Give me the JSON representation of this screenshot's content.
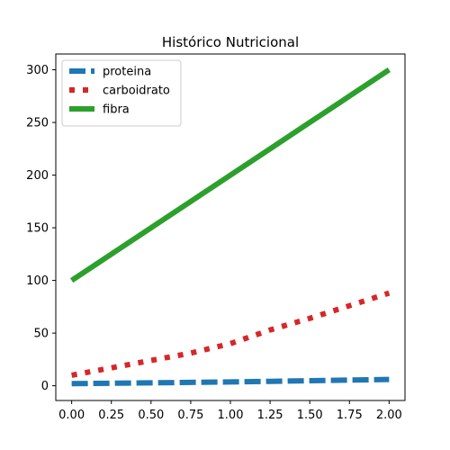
{
  "chart_data": {
    "type": "line",
    "title": "Histórico Nutricional",
    "xlabel": "",
    "ylabel": "",
    "xlim": [
      -0.1,
      2.1
    ],
    "ylim": [
      -14,
      315
    ],
    "x_ticks": [
      "0.00",
      "0.25",
      "0.50",
      "0.75",
      "1.00",
      "1.25",
      "1.50",
      "1.75",
      "2.00"
    ],
    "y_ticks": [
      "0",
      "50",
      "100",
      "150",
      "200",
      "250",
      "300"
    ],
    "grid": false,
    "legend_position": "top-left",
    "x": [
      0.0,
      0.25,
      0.5,
      0.75,
      1.0,
      1.25,
      1.5,
      1.75,
      2.0
    ],
    "series": [
      {
        "name": "proteina",
        "color": "#1f77b4",
        "style": "dashed",
        "values": [
          2,
          2.4,
          2.8,
          3.2,
          3.6,
          4.2,
          4.8,
          5.4,
          6
        ]
      },
      {
        "name": "carboidrato",
        "color": "#d62728",
        "style": "dotted",
        "values": [
          10,
          17,
          24,
          31,
          40,
          53,
          64,
          76,
          88
        ]
      },
      {
        "name": "fibra",
        "color": "#2ca02c",
        "style": "solid",
        "values": [
          100,
          125,
          150,
          175,
          200,
          225,
          250,
          275,
          300
        ]
      }
    ]
  }
}
